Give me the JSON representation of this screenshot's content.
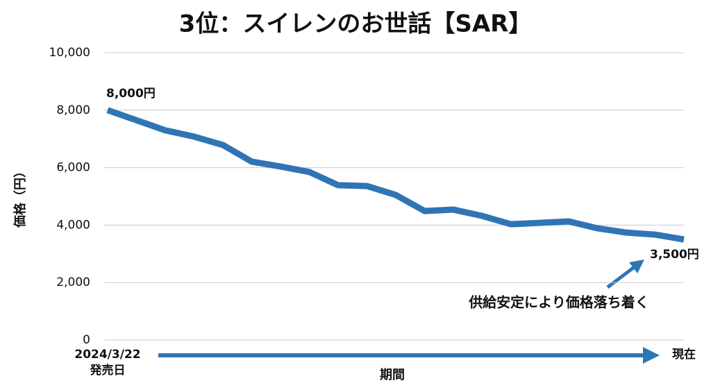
{
  "chart_data": {
    "type": "line",
    "title": "3位：スイレンのお世話【SAR】",
    "y_label": "価格（円）",
    "x_label": "期間",
    "categories": [
      "2024/3/22",
      null,
      null,
      null,
      null,
      null,
      null,
      null,
      null,
      null,
      null,
      null,
      null,
      null,
      null,
      null,
      null,
      null,
      null,
      null,
      "現在"
    ],
    "start_sublabel": "発売日",
    "series": [
      {
        "name": "価格",
        "color": "#2f75b5",
        "values": [
          8000,
          7650,
          7300,
          7080,
          6790,
          6210,
          6040,
          5850,
          5390,
          5360,
          5050,
          4490,
          4540,
          4320,
          4030,
          4080,
          4130,
          3890,
          3740,
          3670,
          3500
        ]
      }
    ],
    "ylim": [
      0,
      10000
    ],
    "yticks": [
      0,
      {
        "value": 2000,
        "label": "2,000"
      },
      {
        "value": 4000,
        "label": "4,000"
      },
      {
        "value": 6000,
        "label": "6,000"
      },
      {
        "value": 8000,
        "label": "8,000"
      },
      {
        "value": 10000,
        "label": "10,000"
      }
    ],
    "grid": true,
    "annotations": [
      "8,000円",
      "3,500円",
      "供給安定により価格落ち着く"
    ]
  }
}
